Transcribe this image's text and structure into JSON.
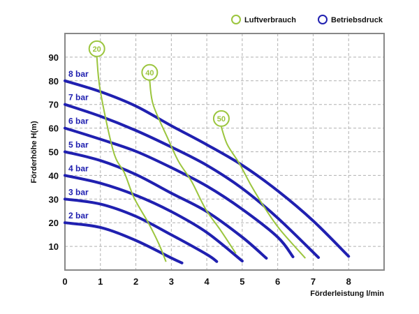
{
  "chart_data": {
    "type": "line",
    "xlabel": "Förderleistung l/min",
    "ylabel": "Förderhöhe H(m)",
    "xlim": [
      0,
      9
    ],
    "ylim": [
      0,
      100
    ],
    "x_ticks": [
      "0",
      "1",
      "2",
      "3",
      "4",
      "5",
      "6",
      "7",
      "8"
    ],
    "y_ticks": [
      "10",
      "20",
      "30",
      "40",
      "50",
      "60",
      "70",
      "80",
      "90"
    ],
    "grid": true,
    "legend_position": "top-right",
    "legend": [
      {
        "label": "Luftverbrauch",
        "color": "#9bc53d"
      },
      {
        "label": "Betriebsdruck",
        "color": "#2020b0"
      }
    ],
    "pressure_series": [
      {
        "name": "8 bar",
        "points": [
          [
            0,
            80
          ],
          [
            1,
            75.4
          ],
          [
            2,
            69.3
          ],
          [
            3,
            61
          ],
          [
            4,
            53
          ],
          [
            5,
            44.3
          ],
          [
            6,
            33.5
          ],
          [
            7,
            20.8
          ],
          [
            8,
            5.8
          ]
        ]
      },
      {
        "name": "7 bar",
        "points": [
          [
            0,
            70
          ],
          [
            1,
            65
          ],
          [
            2,
            59
          ],
          [
            3,
            52
          ],
          [
            4,
            44.3
          ],
          [
            5,
            34.5
          ],
          [
            6,
            22
          ],
          [
            7.15,
            5.3
          ]
        ]
      },
      {
        "name": "6 bar",
        "points": [
          [
            0,
            60
          ],
          [
            1,
            55.3
          ],
          [
            2,
            50.2
          ],
          [
            3,
            43.3
          ],
          [
            4,
            35.5
          ],
          [
            5,
            25.7
          ],
          [
            6,
            13.9
          ],
          [
            6.43,
            5.6
          ]
        ]
      },
      {
        "name": "5 bar",
        "points": [
          [
            0,
            50
          ],
          [
            1,
            46.3
          ],
          [
            2,
            40.4
          ],
          [
            3,
            32.5
          ],
          [
            4,
            24.7
          ],
          [
            5,
            13.9
          ],
          [
            5.68,
            5
          ]
        ]
      },
      {
        "name": "4 bar",
        "points": [
          [
            0,
            40
          ],
          [
            1,
            36.7
          ],
          [
            2,
            31.6
          ],
          [
            3,
            24.7
          ],
          [
            4,
            15.9
          ],
          [
            5,
            3.8
          ]
        ]
      },
      {
        "name": "3 bar",
        "points": [
          [
            0,
            30
          ],
          [
            1,
            27.9
          ],
          [
            2,
            22.7
          ],
          [
            3,
            14.9
          ],
          [
            4,
            6.6
          ],
          [
            4.28,
            3.6
          ]
        ]
      },
      {
        "name": "2 bar",
        "points": [
          [
            0,
            20
          ],
          [
            1,
            18
          ],
          [
            2,
            12.5
          ],
          [
            3,
            5.1
          ],
          [
            3.3,
            3
          ]
        ]
      }
    ],
    "air_series": [
      {
        "name": "20",
        "points": [
          [
            0.9,
            90
          ],
          [
            1,
            75.5
          ],
          [
            1.37,
            50
          ],
          [
            1.68,
            41
          ],
          [
            1.95,
            30.5
          ],
          [
            2.35,
            20
          ],
          [
            2.65,
            11
          ],
          [
            2.85,
            3.5
          ]
        ]
      },
      {
        "name": "40",
        "points": [
          [
            2.39,
            80
          ],
          [
            2.49,
            69.8
          ],
          [
            2.89,
            56
          ],
          [
            3.2,
            46
          ],
          [
            3.57,
            37.5
          ],
          [
            3.97,
            25.7
          ],
          [
            4.38,
            17
          ],
          [
            4.82,
            7
          ]
        ]
      },
      {
        "name": "50",
        "points": [
          [
            4.41,
            60.5
          ],
          [
            4.58,
            53
          ],
          [
            4.92,
            45
          ],
          [
            5.26,
            35.5
          ],
          [
            5.66,
            25.7
          ],
          [
            6.07,
            17
          ],
          [
            6.78,
            5
          ]
        ]
      }
    ],
    "colors": {
      "pressure": "#2020b0",
      "air": "#9bc53d",
      "grid": "#b0b0b0",
      "frame": "#888888"
    }
  }
}
